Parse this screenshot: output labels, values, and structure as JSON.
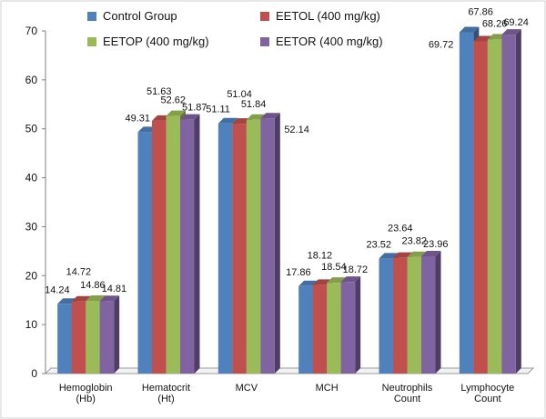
{
  "chart_data": {
    "type": "bar",
    "categories": [
      [
        "Hemoglobin",
        "(Hb)"
      ],
      [
        "Hematocrit",
        "(Ht)"
      ],
      [
        "MCV"
      ],
      [
        "MCH"
      ],
      [
        "Neutrophils",
        "Count"
      ],
      [
        "Lymphocyte",
        "Count"
      ]
    ],
    "series": [
      {
        "name": "Control Group",
        "color": "#4F81BD",
        "values": [
          14.24,
          49.31,
          51.11,
          17.86,
          23.52,
          69.72
        ]
      },
      {
        "name": "EETOL (400 mg/kg)",
        "color": "#C0504D",
        "values": [
          14.72,
          51.63,
          51.04,
          18.12,
          23.64,
          67.86
        ]
      },
      {
        "name": "EETOP (400 mg/kg)",
        "color": "#9BBB59",
        "values": [
          14.86,
          52.62,
          51.84,
          18.54,
          23.82,
          68.26
        ]
      },
      {
        "name": "EETOR (400 mg/kg)",
        "color": "#8064A2",
        "values": [
          14.81,
          51.87,
          52.14,
          18.72,
          23.96,
          69.24
        ]
      }
    ],
    "yticks": [
      "0",
      "10",
      "20",
      "30",
      "40",
      "50",
      "60",
      "70"
    ],
    "ylim": [
      0,
      70
    ],
    "legend_position": "top",
    "title": "",
    "xlabel": "",
    "ylabel": ""
  }
}
